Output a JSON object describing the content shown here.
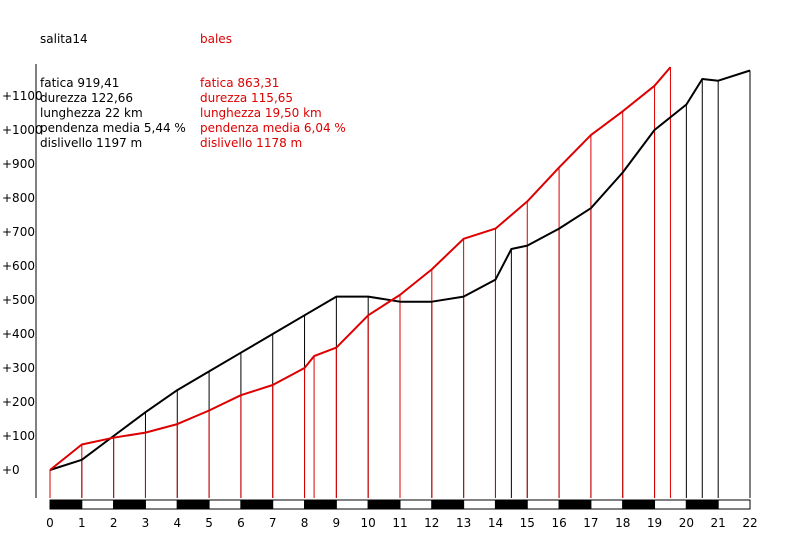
{
  "chart_data": {
    "type": "line",
    "xlabel": "",
    "ylabel": "",
    "xlim": [
      0,
      22
    ],
    "ylim": [
      0,
      1200
    ],
    "x_ticks": [
      "0",
      "1",
      "2",
      "3",
      "4",
      "5",
      "6",
      "7",
      "8",
      "9",
      "10",
      "11",
      "12",
      "13",
      "14",
      "15",
      "16",
      "17",
      "18",
      "19",
      "20",
      "21",
      "22"
    ],
    "y_ticks": [
      "+0",
      "+100",
      "+200",
      "+300",
      "+400",
      "+500",
      "+600",
      "+700",
      "+800",
      "+900",
      "+1000",
      "+1100"
    ],
    "y_tick_values": [
      0,
      100,
      200,
      300,
      400,
      500,
      600,
      700,
      800,
      900,
      1000,
      1100
    ],
    "series": [
      {
        "name": "salita14",
        "color": "#000000",
        "x": [
          0,
          1,
          2,
          3,
          4,
          5,
          6,
          7,
          8,
          9,
          10,
          11,
          12,
          13,
          14,
          14.5,
          15,
          16,
          17,
          18,
          19,
          20,
          20.5,
          21,
          22
        ],
        "y": [
          0,
          30,
          100,
          170,
          235,
          290,
          345,
          400,
          455,
          510,
          510,
          495,
          495,
          510,
          560,
          650,
          660,
          710,
          770,
          875,
          1000,
          1075,
          1150,
          1145,
          1175
        ],
        "stats": [
          "fatica 919,41",
          "durezza 122,66",
          "lunghezza 22 km",
          "pendenza media 5,44 %",
          "dislivello 1197 m"
        ]
      },
      {
        "name": "bales",
        "color": "#dd0000",
        "x": [
          0,
          1,
          2,
          3,
          4,
          5,
          6,
          7,
          8,
          8.3,
          9,
          10,
          11,
          12,
          13,
          14,
          15,
          16,
          17,
          18,
          19,
          19.5
        ],
        "y": [
          0,
          75,
          95,
          110,
          135,
          175,
          220,
          250,
          300,
          335,
          360,
          455,
          515,
          590,
          680,
          710,
          790,
          890,
          985,
          1055,
          1130,
          1185
        ],
        "stats": [
          "fatica 863,31",
          "durezza 115,65",
          "lunghezza 19,50 km",
          "pendenza media 6,04 %",
          "dislivello 1178 m"
        ]
      }
    ],
    "grid": false,
    "legend": "top-left"
  }
}
